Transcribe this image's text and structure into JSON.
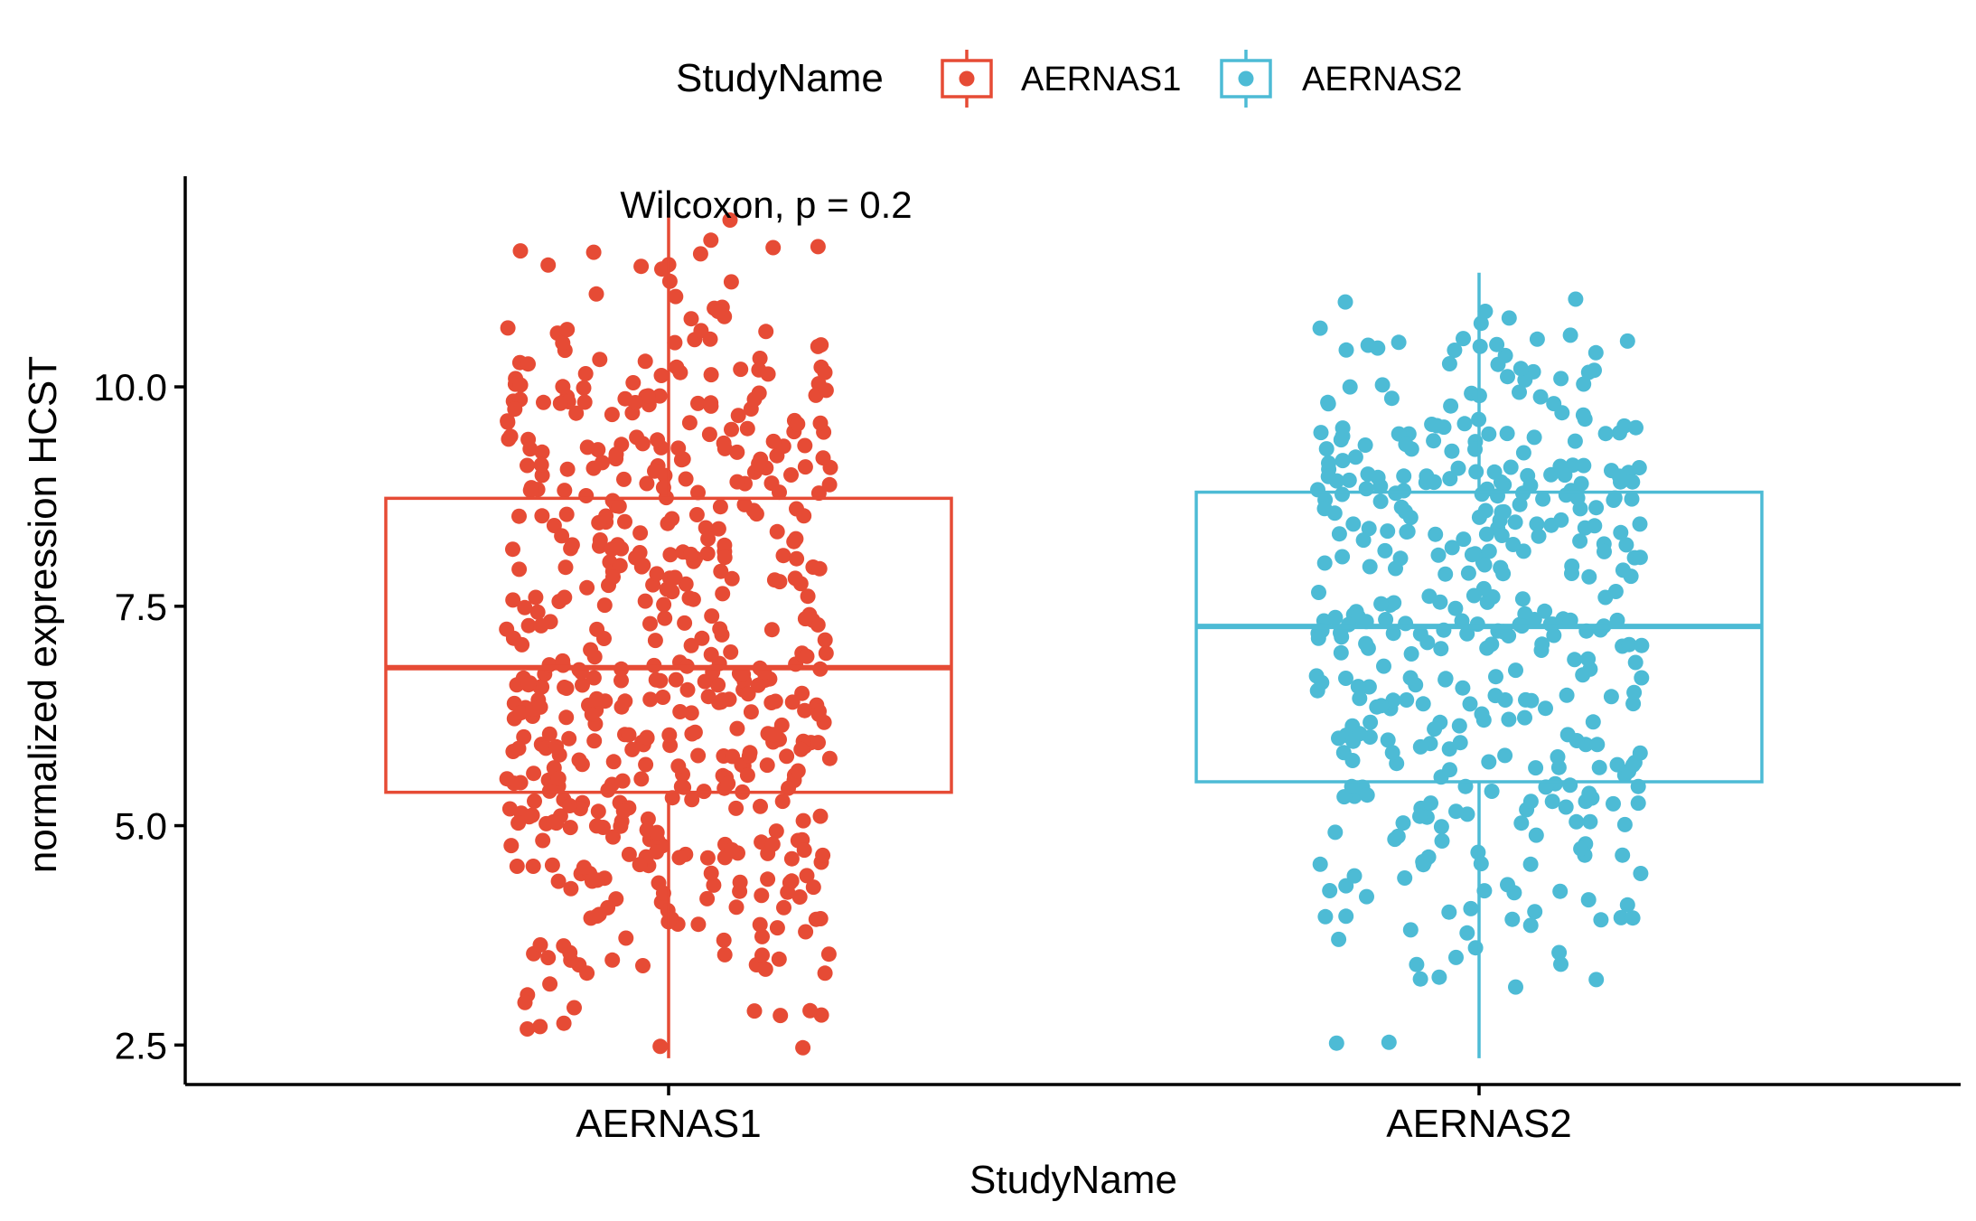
{
  "chart_data": {
    "type": "box_jitter",
    "title": "",
    "xlabel": "StudyName",
    "ylabel": "normalized expression HCST",
    "ylim": [
      2.05,
      12.4
    ],
    "yticks": [
      "2.5",
      "5.0",
      "7.5",
      "10.0"
    ],
    "grid": false,
    "annotation": "Wilcoxon, p = 0.2",
    "legend": {
      "title": "StudyName",
      "placement": "top",
      "entries": [
        "AERNAS1",
        "AERNAS2"
      ]
    },
    "categories": [
      "AERNAS1",
      "AERNAS2"
    ],
    "series": [
      {
        "name": "AERNAS1",
        "color": "#E64B35",
        "box": {
          "min": 2.35,
          "q1": 5.38,
          "median": 6.8,
          "q3": 8.73,
          "max": 11.95
        },
        "n_points": 560,
        "outliers": [
          11.9
        ]
      },
      {
        "name": "AERNAS2",
        "color": "#4DBBD5",
        "box": {
          "min": 2.35,
          "q1": 5.5,
          "median": 7.27,
          "q3": 8.8,
          "max": 11.3
        },
        "n_points": 420,
        "outliers": []
      }
    ]
  }
}
